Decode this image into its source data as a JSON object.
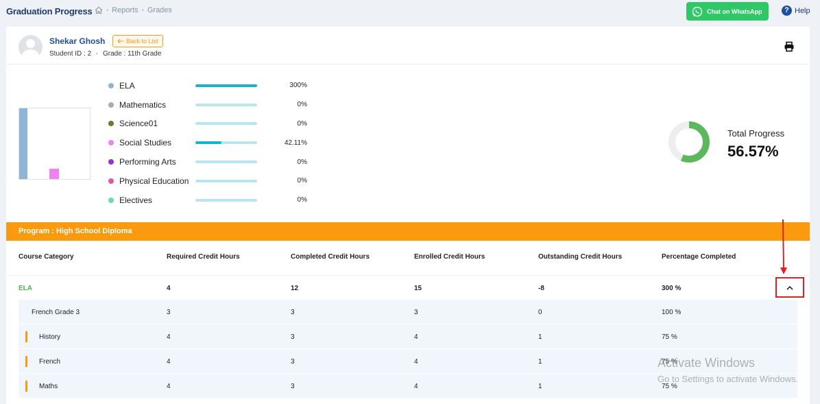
{
  "header": {
    "page_title": "Graduation Progress",
    "breadcrumb": [
      "Reports",
      "Grades"
    ],
    "whatsapp_label": "Chat on WhatsApp",
    "help_label": "Help"
  },
  "student": {
    "name": "Shekar Ghosh",
    "back_label": "Back to List",
    "id_text": "Student ID : 2",
    "grade_text": "Grade : 11th Grade"
  },
  "subjects": [
    {
      "name": "ELA",
      "percent_label": "300%",
      "progress": 1.0,
      "color": "#8eb4d6"
    },
    {
      "name": "Mathematics",
      "percent_label": "0%",
      "progress": 0,
      "color": "#a3b39a"
    },
    {
      "name": "Science01",
      "percent_label": "0%",
      "progress": 0,
      "color": "#6d7a2a"
    },
    {
      "name": "Social Studies",
      "percent_label": "42.11%",
      "progress": 0.4211,
      "color": "#ee82ee"
    },
    {
      "name": "Performing Arts",
      "percent_label": "0%",
      "progress": 0,
      "color": "#9b30d9"
    },
    {
      "name": "Physical Education",
      "percent_label": "0%",
      "progress": 0,
      "color": "#de5aa8"
    },
    {
      "name": "Electives",
      "percent_label": "0%",
      "progress": 0,
      "color": "#66e0a8"
    }
  ],
  "mini_chart": {
    "bars": [
      {
        "subject": "ELA",
        "value": 300,
        "color": "#8eb4d6"
      },
      {
        "subject": "Social Studies",
        "value": 42.11,
        "color": "#ee82ee"
      }
    ],
    "max": 300
  },
  "total_progress": {
    "label": "Total Progress",
    "value_label": "56.57%",
    "fraction": 0.5657,
    "color": "#5cb85c",
    "track_color": "#eeeeee"
  },
  "program": {
    "label": "Program : High School Diploma"
  },
  "table": {
    "headers": [
      "Course Category",
      "Required Credit Hours",
      "Completed Credit Hours",
      "Enrolled Credit Hours",
      "Outstanding Credit Hours",
      "Percentage Completed"
    ],
    "category_row": {
      "category": "ELA",
      "required": "4",
      "completed": "12",
      "enrolled": "15",
      "outstanding": "-8",
      "percentage": "300 %"
    },
    "course_rows": [
      {
        "course": "French Grade 3",
        "required": "3",
        "completed": "3",
        "enrolled": "3",
        "outstanding": "0",
        "percentage": "100 %",
        "marked": false
      },
      {
        "course": "History",
        "required": "4",
        "completed": "3",
        "enrolled": "4",
        "outstanding": "1",
        "percentage": "75 %",
        "marked": true
      },
      {
        "course": "French",
        "required": "4",
        "completed": "3",
        "enrolled": "4",
        "outstanding": "1",
        "percentage": "75 %",
        "marked": true
      },
      {
        "course": "Maths",
        "required": "4",
        "completed": "3",
        "enrolled": "4",
        "outstanding": "1",
        "percentage": "75 %",
        "marked": true
      }
    ]
  },
  "watermark": {
    "line1": "Activate Windows",
    "line2": "Go to Settings to activate Windows."
  }
}
